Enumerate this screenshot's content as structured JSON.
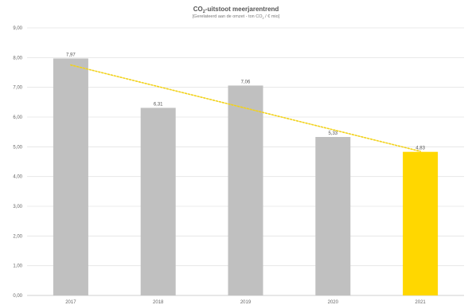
{
  "chart_data": {
    "type": "bar",
    "title_main": "CO",
    "title_sub": "2",
    "title_rest": "-uitstoot meerjarentrend",
    "subtitle_pre": "[Gerelateerd aan de omzet - ton CO",
    "subtitle_sub": "2",
    "subtitle_post": " / € mio]",
    "categories": [
      "2017",
      "2018",
      "2019",
      "2020",
      "2021"
    ],
    "values": [
      7.97,
      6.31,
      7.06,
      5.33,
      4.83
    ],
    "data_labels": [
      "7,97",
      "6,31",
      "7,06",
      "5,33",
      "4,83"
    ],
    "y_ticks": [
      "0,00",
      "1,00",
      "2,00",
      "3,00",
      "4,00",
      "5,00",
      "6,00",
      "7,00",
      "8,00",
      "9,00"
    ],
    "ylim": [
      0,
      9
    ],
    "grid": true,
    "trendline": {
      "type": "linear",
      "style": "dotted"
    },
    "colors": {
      "bar": "#c0c0c0",
      "highlight_bar": "#ffd700",
      "trendline": "#f2d21b",
      "grid": "#e4e4e4"
    },
    "highlight_index": 4
  }
}
